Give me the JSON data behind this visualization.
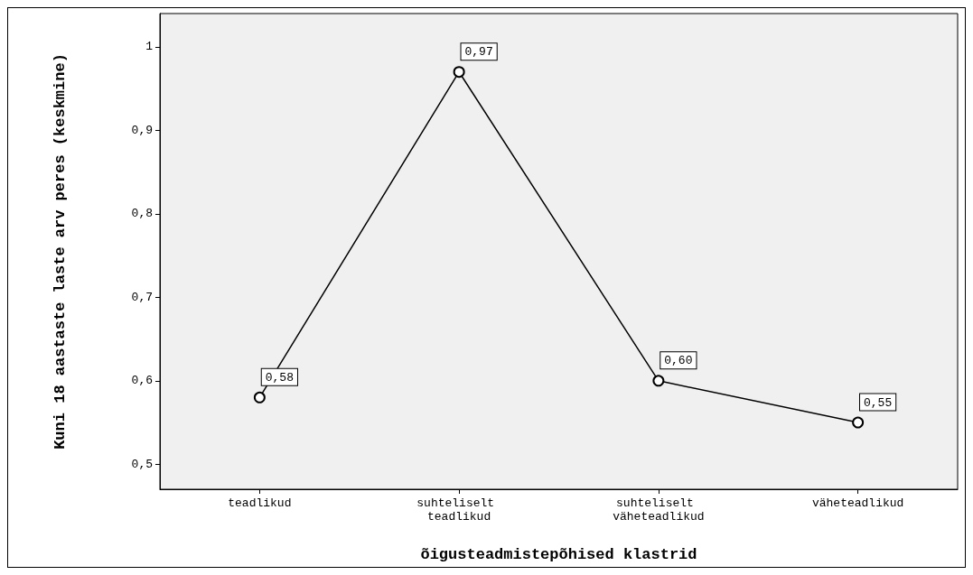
{
  "chart_data": {
    "type": "line",
    "xlabel": "õigusteadmistepõhised klastrid",
    "ylabel": "Kuni 18 aastaste laste arv peres (keskmine)",
    "categories": [
      "teadlikud",
      "suhteliselt teadlikud",
      "suhteliselt väheteadlikud",
      "väheteadlikud"
    ],
    "values": [
      0.58,
      0.97,
      0.6,
      0.55
    ],
    "value_labels": [
      "0,58",
      "0,97",
      "0,60",
      "0,55"
    ],
    "color": "#000000",
    "marker": "circle",
    "line_style": "solid",
    "ylim": [
      0.47,
      1.04
    ],
    "yticks": [
      {
        "value": 0.5,
        "label": "0,5"
      },
      {
        "value": 0.6,
        "label": "0,6"
      },
      {
        "value": 0.7,
        "label": "0,7"
      },
      {
        "value": 0.8,
        "label": "0,8"
      },
      {
        "value": 0.9,
        "label": "0,9"
      },
      {
        "value": 1,
        "label": "1"
      }
    ]
  }
}
